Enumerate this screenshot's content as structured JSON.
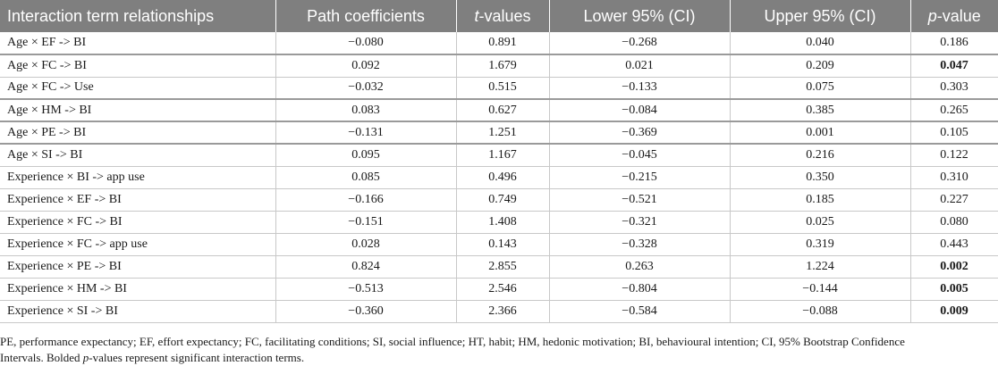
{
  "table": {
    "headers": [
      {
        "text": "Interaction term relationships"
      },
      {
        "text": "Path coefficients"
      },
      {
        "italic": "t",
        "text": "-values"
      },
      {
        "text": "Lower 95% (CI)"
      },
      {
        "text": "Upper 95% (CI)"
      },
      {
        "italic": "p",
        "text": "-value"
      }
    ],
    "rows": [
      {
        "term": "Age × EF -> BI",
        "path": "−0.080",
        "t": "0.891",
        "lower": "−0.268",
        "upper": "0.040",
        "p": "0.186",
        "p_bold": false
      },
      {
        "term": "Age × FC -> BI",
        "path": "0.092",
        "t": "1.679",
        "lower": "0.021",
        "upper": "0.209",
        "p": "0.047",
        "p_bold": true
      },
      {
        "term": "Age × FC -> Use",
        "path": "−0.032",
        "t": "0.515",
        "lower": "−0.133",
        "upper": "0.075",
        "p": "0.303",
        "p_bold": false
      },
      {
        "term": "Age × HM -> BI",
        "path": "0.083",
        "t": "0.627",
        "lower": "−0.084",
        "upper": "0.385",
        "p": "0.265",
        "p_bold": false
      },
      {
        "term": "Age × PE -> BI",
        "path": "−0.131",
        "t": "1.251",
        "lower": "−0.369",
        "upper": "0.001",
        "p": "0.105",
        "p_bold": false
      },
      {
        "term": "Age × SI -> BI",
        "path": "0.095",
        "t": "1.167",
        "lower": "−0.045",
        "upper": "0.216",
        "p": "0.122",
        "p_bold": false
      },
      {
        "term": "Experience × BI -> app use",
        "path": "0.085",
        "t": "0.496",
        "lower": "−0.215",
        "upper": "0.350",
        "p": "0.310",
        "p_bold": false
      },
      {
        "term": "Experience × EF -> BI",
        "path": "−0.166",
        "t": "0.749",
        "lower": "−0.521",
        "upper": "0.185",
        "p": "0.227",
        "p_bold": false
      },
      {
        "term": "Experience × FC -> BI",
        "path": "−0.151",
        "t": "1.408",
        "lower": "−0.321",
        "upper": "0.025",
        "p": "0.080",
        "p_bold": false
      },
      {
        "term": "Experience × FC -> app use",
        "path": "0.028",
        "t": "0.143",
        "lower": "−0.328",
        "upper": "0.319",
        "p": "0.443",
        "p_bold": false
      },
      {
        "term": "Experience × PE -> BI",
        "path": "0.824",
        "t": "2.855",
        "lower": "0.263",
        "upper": "1.224",
        "p": "0.002",
        "p_bold": true
      },
      {
        "term": "Experience × HM -> BI",
        "path": "−0.513",
        "t": "2.546",
        "lower": "−0.804",
        "upper": "−0.144",
        "p": "0.005",
        "p_bold": true
      },
      {
        "term": "Experience × SI -> BI",
        "path": "−0.360",
        "t": "2.366",
        "lower": "−0.584",
        "upper": "−0.088",
        "p": "0.009",
        "p_bold": true
      }
    ]
  },
  "footnote": {
    "line1": "PE, performance expectancy; EF, effort expectancy; FC, facilitating conditions; SI, social influence; HT, habit; HM, hedonic motivation; BI, behavioural intention; CI, 95% Bootstrap Confidence",
    "line2_before": "Intervals. Bolded ",
    "line2_italic": "p",
    "line2_after": "-values represent significant interaction terms."
  }
}
